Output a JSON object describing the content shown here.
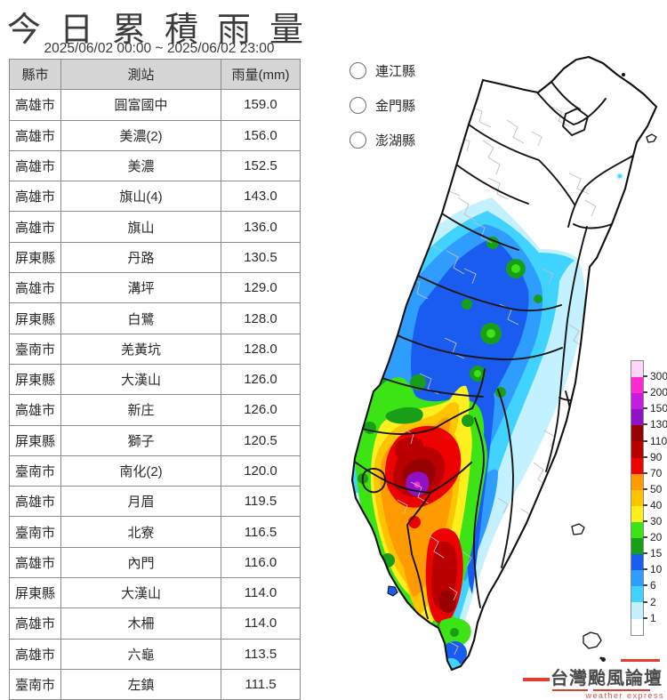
{
  "header": {
    "title": "今日累積雨量",
    "date_range": "2025/06/02 00:00 ~ 2025/06/02 23:00"
  },
  "table": {
    "columns": [
      "縣市",
      "測站",
      "雨量(mm)"
    ],
    "rows": [
      [
        "高雄市",
        "圓富國中",
        "159.0"
      ],
      [
        "高雄市",
        "美濃(2)",
        "156.0"
      ],
      [
        "高雄市",
        "美濃",
        "152.5"
      ],
      [
        "高雄市",
        "旗山(4)",
        "143.0"
      ],
      [
        "高雄市",
        "旗山",
        "136.0"
      ],
      [
        "屏東縣",
        "丹路",
        "130.5"
      ],
      [
        "高雄市",
        "溝坪",
        "129.0"
      ],
      [
        "屏東縣",
        "白鷺",
        "128.0"
      ],
      [
        "臺南市",
        "羌黃坑",
        "128.0"
      ],
      [
        "屏東縣",
        "大漢山",
        "126.0"
      ],
      [
        "高雄市",
        "新庄",
        "126.0"
      ],
      [
        "屏東縣",
        "獅子",
        "120.5"
      ],
      [
        "臺南市",
        "南化(2)",
        "120.0"
      ],
      [
        "高雄市",
        "月眉",
        "119.5"
      ],
      [
        "臺南市",
        "北寮",
        "116.5"
      ],
      [
        "高雄市",
        "內門",
        "116.0"
      ],
      [
        "屏東縣",
        "大漢山",
        "114.0"
      ],
      [
        "高雄市",
        "木柵",
        "114.0"
      ],
      [
        "高雄市",
        "六龜",
        "113.5"
      ],
      [
        "臺南市",
        "左鎮",
        "111.5"
      ]
    ]
  },
  "region_selector": {
    "options": [
      "連江縣",
      "金門縣",
      "澎湖縣"
    ]
  },
  "chart_data": {
    "type": "heatmap",
    "title": "今日累積雨量",
    "period": "2025/06/02 00:00 ~ 2025/06/02 23:00",
    "unit": "mm",
    "region": "臺灣本島分區累積雨量等值圖",
    "legend_position": "right",
    "legend_levels_mm": [
      300,
      200,
      150,
      130,
      110,
      90,
      70,
      50,
      40,
      30,
      20,
      15,
      10,
      6,
      2,
      1
    ],
    "legend_colors_top_to_bottom": [
      "#ffd6f8",
      "#ff2ad2",
      "#c41ddd",
      "#9012c8",
      "#970000",
      "#b80000",
      "#ec0000",
      "#ff9a00",
      "#ffc400",
      "#ffef1f",
      "#3ce315",
      "#17a017",
      "#1a5cf0",
      "#2f9dff",
      "#41d3ff",
      "#c4f1ff",
      "#ffffff"
    ],
    "pattern": "150mm以上紫色極值中心位於高雄旗山美濃一帶，70-130mm紅色區覆蓋臺南高雄屏東山區，外圍依序橙黃綠；中部至東北部山區另有10-50mm藍綠色降雨帶，東部縱谷與西北部近乎無雨",
    "stations": [
      {
        "county": "高雄市",
        "station": "圓富國中",
        "rainfall_mm": 159.0
      },
      {
        "county": "高雄市",
        "station": "美濃(2)",
        "rainfall_mm": 156.0
      },
      {
        "county": "高雄市",
        "station": "美濃",
        "rainfall_mm": 152.5
      },
      {
        "county": "高雄市",
        "station": "旗山(4)",
        "rainfall_mm": 143.0
      },
      {
        "county": "高雄市",
        "station": "旗山",
        "rainfall_mm": 136.0
      },
      {
        "county": "屏東縣",
        "station": "丹路",
        "rainfall_mm": 130.5
      },
      {
        "county": "高雄市",
        "station": "溝坪",
        "rainfall_mm": 129.0
      },
      {
        "county": "屏東縣",
        "station": "白鷺",
        "rainfall_mm": 128.0
      },
      {
        "county": "臺南市",
        "station": "羌黃坑",
        "rainfall_mm": 128.0
      },
      {
        "county": "屏東縣",
        "station": "大漢山",
        "rainfall_mm": 126.0
      },
      {
        "county": "高雄市",
        "station": "新庄",
        "rainfall_mm": 126.0
      },
      {
        "county": "屏東縣",
        "station": "獅子",
        "rainfall_mm": 120.5
      },
      {
        "county": "臺南市",
        "station": "南化(2)",
        "rainfall_mm": 120.0
      },
      {
        "county": "高雄市",
        "station": "月眉",
        "rainfall_mm": 119.5
      },
      {
        "county": "臺南市",
        "station": "北寮",
        "rainfall_mm": 116.5
      },
      {
        "county": "高雄市",
        "station": "內門",
        "rainfall_mm": 116.0
      },
      {
        "county": "屏東縣",
        "station": "大漢山",
        "rainfall_mm": 114.0
      },
      {
        "county": "高雄市",
        "station": "木柵",
        "rainfall_mm": 114.0
      },
      {
        "county": "高雄市",
        "station": "六龜",
        "rainfall_mm": 113.5
      },
      {
        "county": "臺南市",
        "station": "左鎮",
        "rainfall_mm": 111.5
      }
    ]
  },
  "logo": {
    "name": "台灣颱風論壇",
    "tagline": "weather express"
  }
}
